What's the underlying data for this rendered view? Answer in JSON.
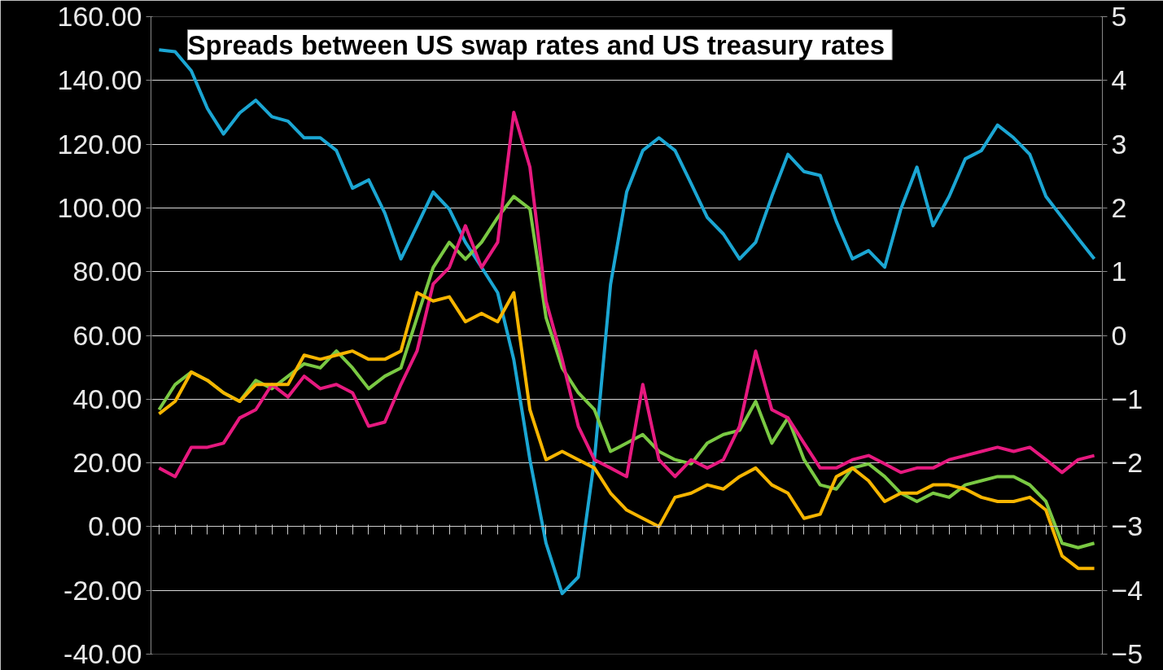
{
  "chart_data": {
    "type": "line",
    "title": "Spreads between  US swap rates and US treasury rates",
    "categories": [
      null,
      null,
      null,
      null,
      null,
      null,
      null,
      null,
      null,
      null,
      null,
      null,
      null,
      null,
      null,
      null,
      null,
      null,
      null,
      null,
      null,
      null,
      null,
      null,
      null,
      null,
      null,
      null,
      null,
      null,
      null,
      null,
      null,
      null,
      null,
      null,
      null,
      null,
      null,
      null,
      null,
      null,
      null,
      null,
      null,
      null,
      null,
      null,
      null,
      null,
      null,
      null,
      null,
      null,
      null,
      null,
      null,
      null,
      null
    ],
    "series": [
      {
        "color": "#1ba6d3",
        "axis": "y2",
        "values": [
          4.48,
          4.45,
          4.15,
          3.56,
          3.16,
          3.49,
          3.69,
          3.43,
          3.36,
          3.1,
          3.1,
          2.9,
          2.31,
          2.44,
          1.92,
          1.2,
          1.72,
          2.25,
          1.98,
          1.46,
          1.07,
          0.67,
          -0.38,
          -1.95,
          -3.26,
          -4.05,
          -3.79,
          -1.95,
          0.8,
          2.25,
          2.9,
          3.1,
          2.9,
          2.38,
          1.85,
          1.59,
          1.2,
          1.46,
          2.18,
          2.84,
          2.57,
          2.51,
          1.79,
          1.2,
          1.33,
          1.07,
          1.98,
          2.64,
          1.72,
          2.18,
          2.77,
          2.9,
          3.3,
          3.1,
          2.84,
          2.18,
          1.85,
          1.52,
          1.2
        ]
      },
      {
        "color": "#7ac943",
        "values": [
          36.7,
          44.6,
          48.5,
          45.9,
          42.0,
          39.3,
          45.9,
          43.3,
          47.2,
          51.1,
          49.8,
          55.1,
          49.8,
          43.3,
          47.2,
          49.8,
          65.6,
          81.3,
          89.2,
          83.9,
          89.2,
          97.0,
          103.6,
          99.7,
          65.6,
          49.8,
          42.0,
          36.7,
          23.6,
          26.2,
          28.9,
          23.6,
          21.0,
          19.7,
          26.2,
          28.9,
          30.2,
          39.3,
          26.2,
          34.1,
          21.0,
          13.1,
          11.8,
          18.4,
          19.7,
          15.7,
          10.5,
          7.9,
          10.5,
          9.2,
          13.1,
          14.4,
          15.7,
          15.7,
          13.1,
          7.9,
          -5.2,
          -6.6,
          -5.2
        ]
      },
      {
        "color": "#e6197f",
        "values": [
          18.4,
          15.7,
          24.9,
          24.9,
          26.2,
          34.1,
          36.7,
          44.6,
          40.7,
          47.2,
          43.3,
          44.6,
          42.0,
          31.5,
          32.8,
          44.6,
          55.1,
          76.1,
          81.3,
          94.4,
          81.3,
          89.2,
          130.0,
          112.8,
          70.8,
          52.5,
          31.5,
          21.0,
          18.4,
          15.7,
          44.6,
          21.0,
          15.7,
          21.0,
          18.4,
          21.0,
          31.5,
          55.1,
          36.7,
          34.1,
          26.2,
          18.4,
          18.4,
          21.0,
          22.3,
          19.7,
          17.0,
          18.4,
          18.4,
          21.0,
          22.3,
          23.6,
          24.9,
          23.6,
          24.9,
          21.0,
          17.0,
          21.0,
          22.3
        ]
      },
      {
        "color": "#f7b500",
        "values": [
          35.4,
          39.3,
          48.5,
          45.9,
          42.0,
          39.3,
          44.6,
          44.6,
          44.6,
          53.8,
          52.5,
          53.8,
          55.1,
          52.5,
          52.5,
          55.1,
          73.4,
          70.8,
          72.1,
          64.3,
          66.9,
          64.3,
          73.4,
          36.7,
          21.0,
          23.6,
          21.0,
          18.4,
          10.5,
          5.2,
          2.6,
          0,
          9.2,
          10.5,
          13.1,
          11.8,
          15.7,
          18.4,
          13.1,
          10.5,
          2.6,
          3.9,
          15.7,
          18.4,
          14.4,
          7.9,
          10.5,
          10.5,
          13.1,
          13.1,
          11.8,
          9.2,
          7.9,
          7.9,
          9.2,
          5.2,
          -9.2,
          -13.1,
          -13.1
        ]
      }
    ],
    "ylim": [
      -40,
      160
    ],
    "yticks": [
      {
        "value": 160,
        "label": "160.00"
      },
      {
        "value": 140,
        "label": "140.00"
      },
      {
        "value": 120,
        "label": "120.00"
      },
      {
        "value": 100,
        "label": "100.00"
      },
      {
        "value": 80,
        "label": "80.00"
      },
      {
        "value": 60,
        "label": "60.00"
      },
      {
        "value": 40,
        "label": "40.00"
      },
      {
        "value": 20,
        "label": "20.00"
      },
      {
        "value": 0,
        "label": "0.00"
      },
      {
        "value": -20,
        "label": "-20.00"
      },
      {
        "value": -40,
        "label": "-40.00"
      }
    ],
    "y2lim": [
      -5,
      5
    ],
    "y2ticks": [
      5,
      4,
      3,
      2,
      1,
      0,
      -1,
      -2,
      -3,
      -4,
      -5
    ],
    "grid": "y",
    "marker": "none",
    "line_style": "solid"
  }
}
